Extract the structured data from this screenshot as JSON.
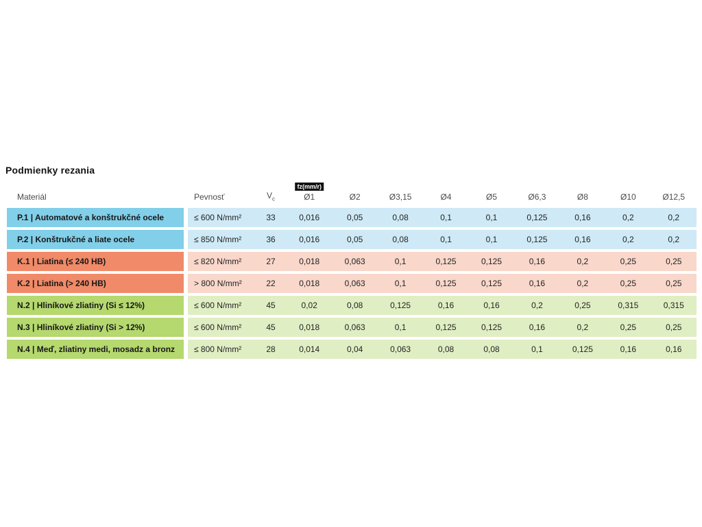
{
  "page": {
    "title": "Podmienky rezania"
  },
  "colors": {
    "p_head": "#82cfe9",
    "p_body": "#cfeaf6",
    "k_head": "#f08a68",
    "k_body": "#f9d7cb",
    "n_head": "#b5d86f",
    "n_body": "#e0eec3",
    "badge_bg": "#111111",
    "badge_text": "#ffffff"
  },
  "table": {
    "fz_badge": "fz(mm/r)",
    "headers": {
      "material": "Materiál",
      "pevnost": "Pevnosť",
      "vc_main": "V",
      "vc_sub": "c",
      "diameters": [
        "Ø1",
        "Ø2",
        "Ø3,15",
        "Ø4",
        "Ø5",
        "Ø6,3",
        "Ø8",
        "Ø10",
        "Ø12,5"
      ]
    },
    "rows": [
      {
        "material": "P.1 | Automatové a konštrukčné ocele",
        "pevnost": "≤ 600 N/mm²",
        "vc": "33",
        "values": [
          "0,016",
          "0,05",
          "0,08",
          "0,1",
          "0,1",
          "0,125",
          "0,16",
          "0,2",
          "0,2"
        ],
        "head_color": "#82cfe9",
        "body_color": "#cfeaf6"
      },
      {
        "material": "P.2 | Konštrukčné a liate ocele",
        "pevnost": "≤ 850 N/mm²",
        "vc": "36",
        "values": [
          "0,016",
          "0,05",
          "0,08",
          "0,1",
          "0,1",
          "0,125",
          "0,16",
          "0,2",
          "0,2"
        ],
        "head_color": "#82cfe9",
        "body_color": "#cfeaf6"
      },
      {
        "material": "K.1 | Liatina (≤ 240 HB)",
        "pevnost": "≤ 820 N/mm²",
        "vc": "27",
        "values": [
          "0,018",
          "0,063",
          "0,1",
          "0,125",
          "0,125",
          "0,16",
          "0,2",
          "0,25",
          "0,25"
        ],
        "head_color": "#f08a68",
        "body_color": "#f9d7cb"
      },
      {
        "material": "K.2 | Liatina (> 240 HB)",
        "pevnost": "> 800 N/mm²",
        "vc": "22",
        "values": [
          "0,018",
          "0,063",
          "0,1",
          "0,125",
          "0,125",
          "0,16",
          "0,2",
          "0,25",
          "0,25"
        ],
        "head_color": "#f08a68",
        "body_color": "#f9d7cb"
      },
      {
        "material": "N.2 | Hliníkové zliatiny (Si ≤ 12%)",
        "pevnost": "≤ 600 N/mm²",
        "vc": "45",
        "values": [
          "0,02",
          "0,08",
          "0,125",
          "0,16",
          "0,16",
          "0,2",
          "0,25",
          "0,315",
          "0,315"
        ],
        "head_color": "#b5d86f",
        "body_color": "#e0eec3"
      },
      {
        "material": "N.3 | Hliníkové zliatiny (Si > 12%)",
        "pevnost": "≤ 600 N/mm²",
        "vc": "45",
        "values": [
          "0,018",
          "0,063",
          "0,1",
          "0,125",
          "0,125",
          "0,16",
          "0,2",
          "0,25",
          "0,25"
        ],
        "head_color": "#b5d86f",
        "body_color": "#e0eec3"
      },
      {
        "material": "N.4 | Meď, zliatiny medi, mosadz a bronz",
        "pevnost": "≤ 800 N/mm²",
        "vc": "28",
        "values": [
          "0,014",
          "0,04",
          "0,063",
          "0,08",
          "0,08",
          "0,1",
          "0,125",
          "0,16",
          "0,16"
        ],
        "head_color": "#b5d86f",
        "body_color": "#e0eec3"
      }
    ]
  }
}
